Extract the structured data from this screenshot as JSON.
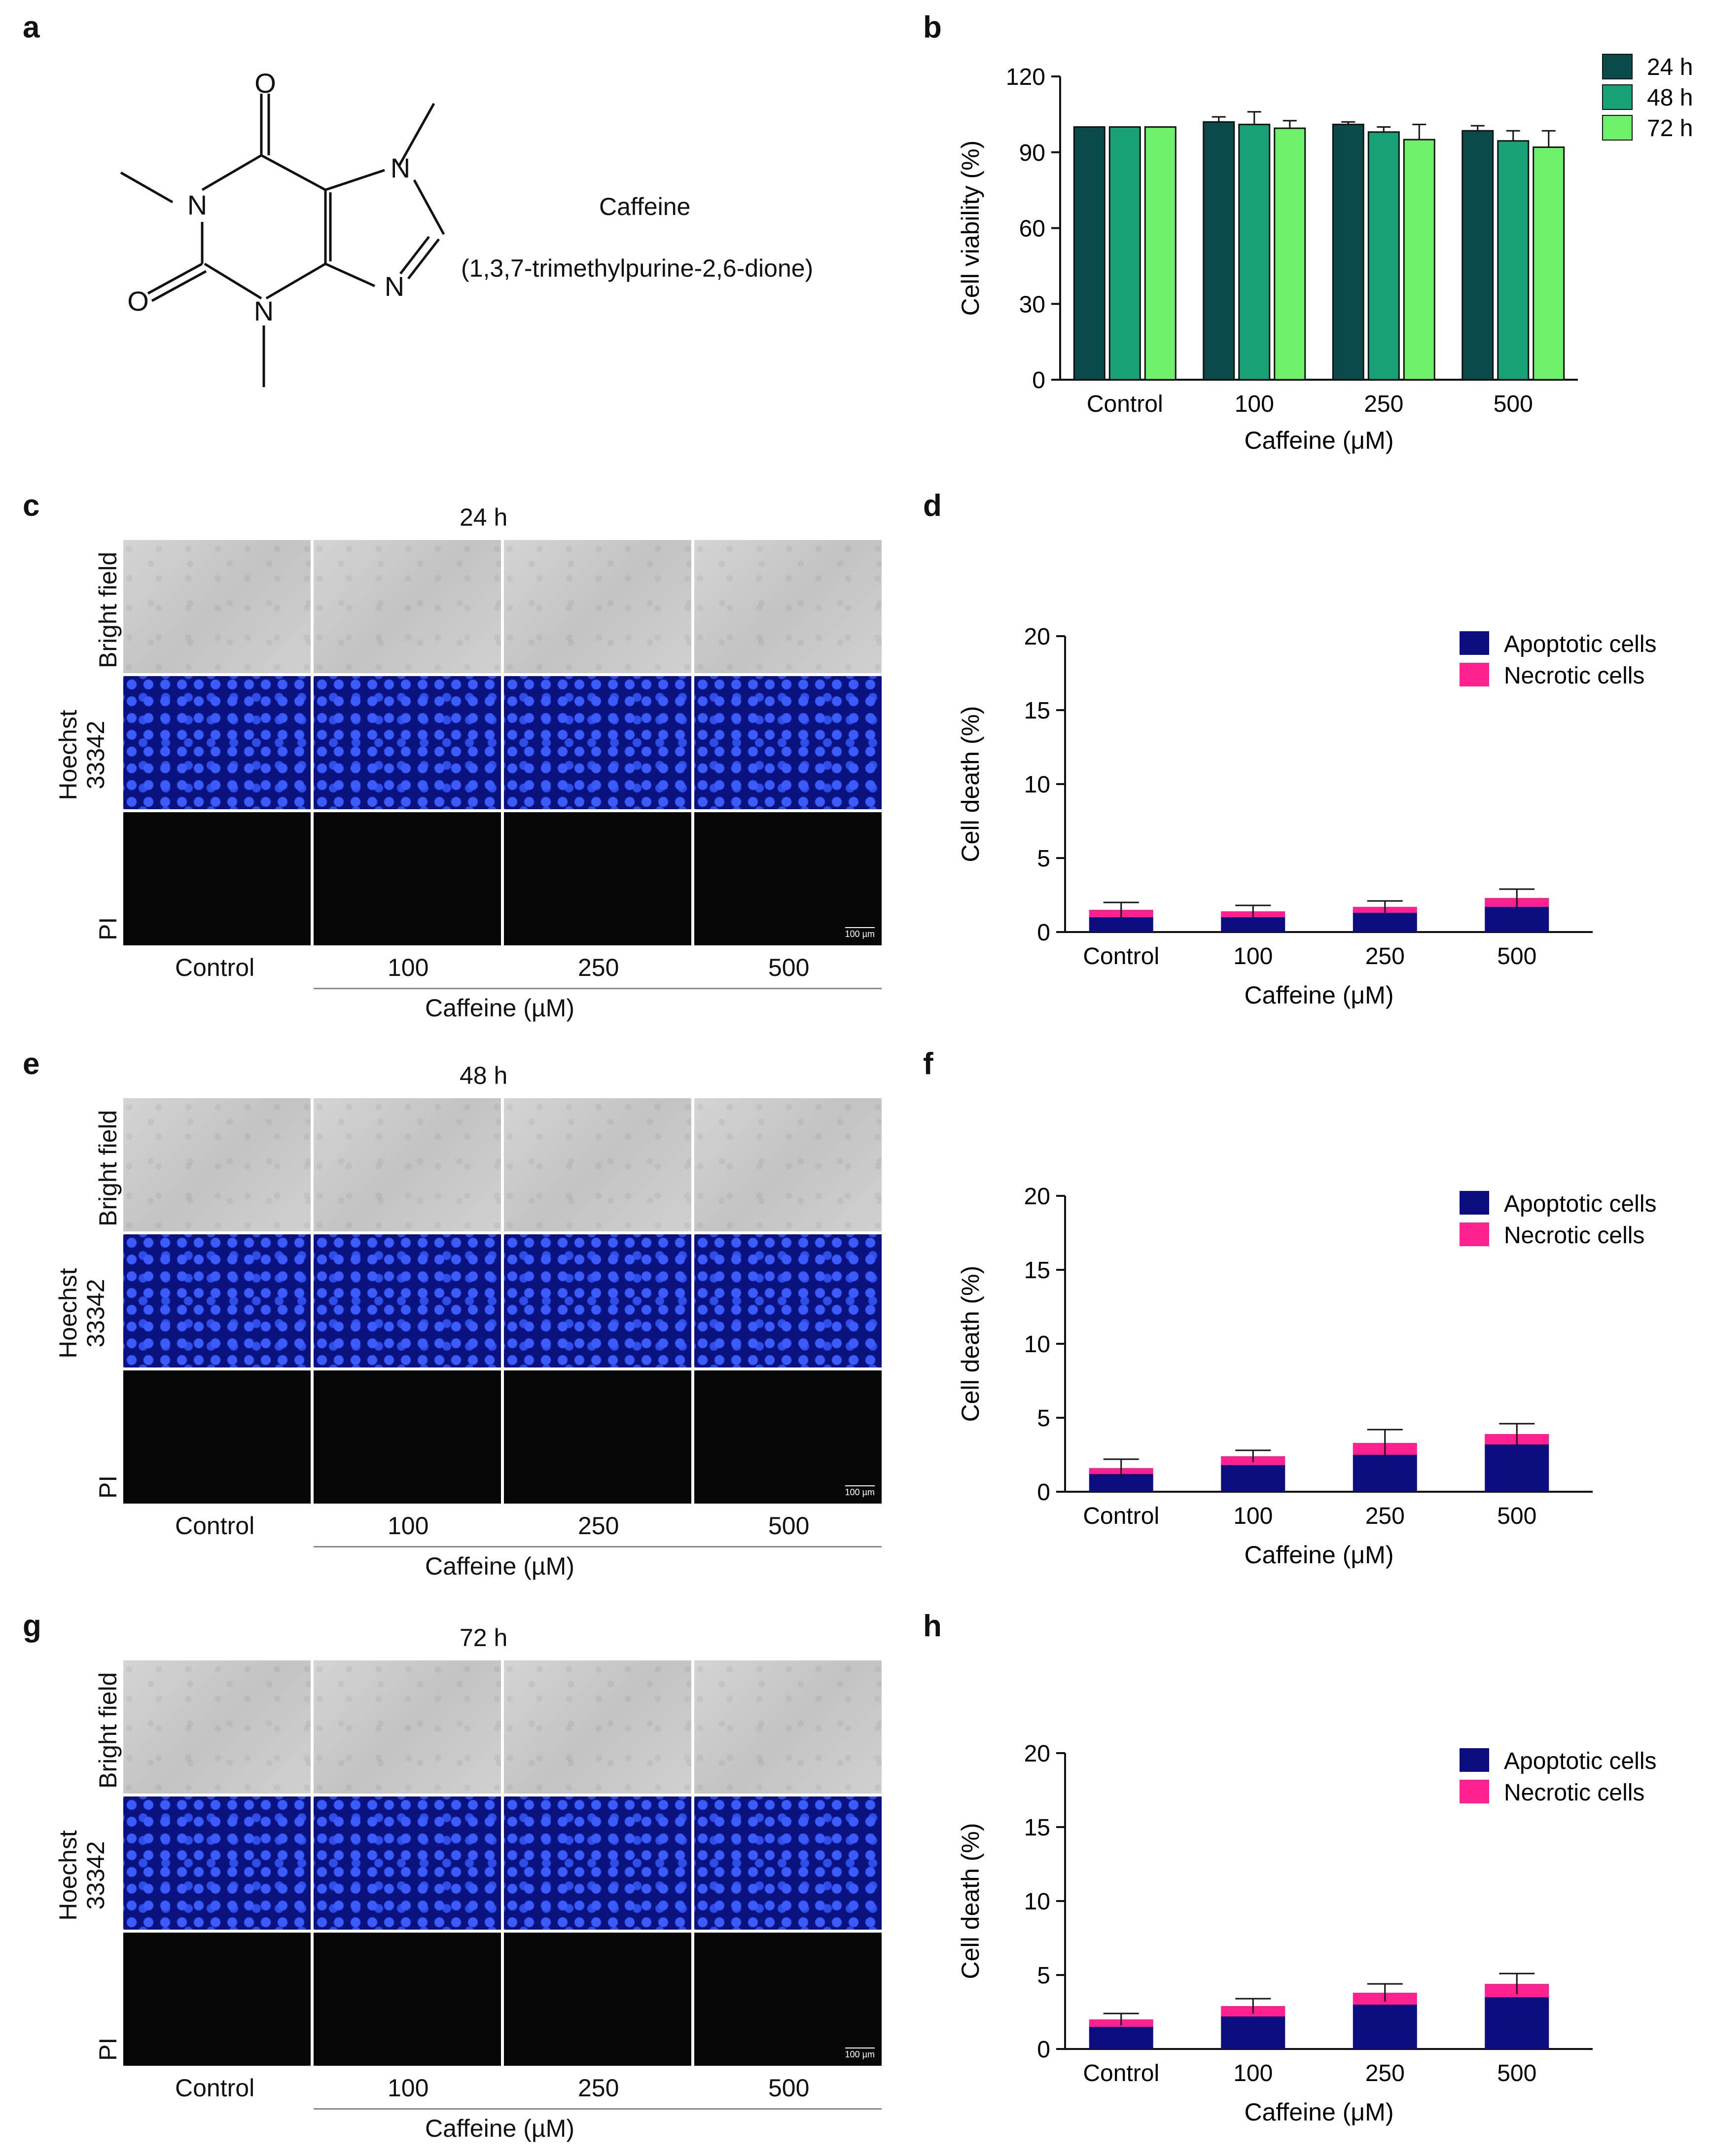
{
  "panel_labels": [
    "a",
    "b",
    "c",
    "d",
    "e",
    "f",
    "g",
    "h"
  ],
  "molecule": {
    "name": "Caffeine",
    "iupac": "(1,3,7-trimethylpurine-2,6-dione)",
    "atoms": {
      "o1": "O",
      "o2": "O",
      "n1": "N",
      "n3": "N",
      "n7": "N",
      "n9": "N"
    }
  },
  "micrographs": [
    {
      "time": "24 h",
      "rows": [
        "Bright field",
        "Hoechst 33342",
        "PI"
      ],
      "columns": [
        "Control",
        "100",
        "250",
        "500"
      ],
      "axis_label": "Caffeine (µM)",
      "scale_bar": "100 µm"
    },
    {
      "time": "48 h",
      "rows": [
        "Bright field",
        "Hoechst 33342",
        "PI"
      ],
      "columns": [
        "Control",
        "100",
        "250",
        "500"
      ],
      "axis_label": "Caffeine (µM)",
      "scale_bar": "100 µm"
    },
    {
      "time": "72 h",
      "rows": [
        "Bright field",
        "Hoechst 33342",
        "PI"
      ],
      "columns": [
        "Control",
        "100",
        "250",
        "500"
      ],
      "axis_label": "Caffeine (µM)",
      "scale_bar": "100 µm"
    }
  ],
  "colors": {
    "h24": "#0b4a4a",
    "h48": "#18a077",
    "h72": "#6ef06a",
    "apoptotic": "#0d0d80",
    "necrotic": "#ff1f8e"
  },
  "chart_data": [
    {
      "panel": "b",
      "type": "bar",
      "categories": [
        "Control",
        "100",
        "250",
        "500"
      ],
      "series": [
        {
          "name": "24 h",
          "values": [
            100,
            102,
            101,
            98.5
          ],
          "errors": [
            0,
            2,
            1,
            2
          ]
        },
        {
          "name": "48 h",
          "values": [
            100,
            101,
            98,
            94.5
          ],
          "errors": [
            0,
            5,
            2,
            4
          ]
        },
        {
          "name": "72 h",
          "values": [
            100,
            99.5,
            95,
            92
          ],
          "errors": [
            0,
            3,
            6,
            6.5
          ]
        }
      ],
      "xlabel": "Caffeine (μM)",
      "ylabel": "Cell viability (%)",
      "ylim": [
        0,
        120
      ],
      "yticks": [
        0,
        30,
        60,
        90,
        120
      ],
      "legend": "top-right"
    },
    {
      "panel": "d",
      "type": "bar",
      "stacked": true,
      "categories": [
        "Control",
        "100",
        "250",
        "500"
      ],
      "series": [
        {
          "name": "Apoptotic cells",
          "values": [
            1.0,
            1.0,
            1.3,
            1.7
          ]
        },
        {
          "name": "Necrotic cells",
          "values": [
            0.5,
            0.4,
            0.4,
            0.6
          ]
        }
      ],
      "errors": [
        0.5,
        0.4,
        0.4,
        0.6
      ],
      "xlabel": "Caffeine  (μM)",
      "ylabel": "Cell death (%)",
      "ylim": [
        0,
        20
      ],
      "yticks": [
        0,
        5,
        10,
        15,
        20
      ],
      "legend": "top-right"
    },
    {
      "panel": "f",
      "type": "bar",
      "stacked": true,
      "categories": [
        "Control",
        "100",
        "250",
        "500"
      ],
      "series": [
        {
          "name": "Apoptotic cells",
          "values": [
            1.2,
            1.8,
            2.5,
            3.2
          ]
        },
        {
          "name": "Necrotic cells",
          "values": [
            0.4,
            0.6,
            0.8,
            0.7
          ]
        }
      ],
      "errors": [
        0.6,
        0.4,
        0.9,
        0.7
      ],
      "xlabel": "Caffeine (μM)",
      "ylabel": "Cell death (%)",
      "ylim": [
        0,
        20
      ],
      "yticks": [
        0,
        5,
        10,
        15,
        20
      ],
      "legend": "top-right"
    },
    {
      "panel": "h",
      "type": "bar",
      "stacked": true,
      "categories": [
        "Control",
        "100",
        "250",
        "500"
      ],
      "series": [
        {
          "name": "Apoptotic cells",
          "values": [
            1.5,
            2.2,
            3.0,
            3.5
          ]
        },
        {
          "name": "Necrotic cells",
          "values": [
            0.5,
            0.7,
            0.8,
            0.9
          ]
        }
      ],
      "errors": [
        0.4,
        0.5,
        0.6,
        0.7
      ],
      "xlabel": "Caffeine (μM)",
      "ylabel": "Cell death (%)",
      "ylim": [
        0,
        20
      ],
      "yticks": [
        0,
        5,
        10,
        15,
        20
      ],
      "legend": "top-right"
    }
  ]
}
